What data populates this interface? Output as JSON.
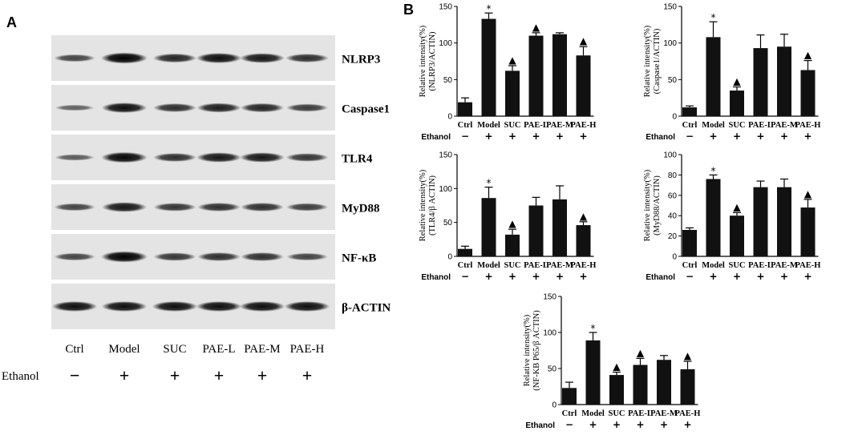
{
  "panel_a": {
    "letter": "A",
    "lanes": [
      "Ctrl",
      "Model",
      "SUC",
      "PAE-L",
      "PAE-M",
      "PAE-H"
    ],
    "treatment_label": "Ethanol",
    "treatment": [
      "−",
      "+",
      "+",
      "+",
      "+",
      "+"
    ],
    "blots": [
      {
        "label": "NLRP3",
        "intensity": [
          0.55,
          1.0,
          0.75,
          0.9,
          0.85,
          0.7
        ]
      },
      {
        "label": "Caspase1",
        "intensity": [
          0.35,
          0.9,
          0.7,
          0.8,
          0.75,
          0.6
        ]
      },
      {
        "label": "TLR4",
        "intensity": [
          0.4,
          0.95,
          0.7,
          0.85,
          0.85,
          0.65
        ]
      },
      {
        "label": "MyD88",
        "intensity": [
          0.55,
          0.85,
          0.65,
          0.7,
          0.7,
          0.6
        ]
      },
      {
        "label": "NF-κB",
        "intensity": [
          0.55,
          1.0,
          0.65,
          0.7,
          0.7,
          0.55
        ]
      },
      {
        "label": "β-ACTIN",
        "intensity": [
          0.9,
          0.9,
          0.9,
          0.9,
          0.9,
          0.9
        ]
      }
    ]
  },
  "panel_b": {
    "letter": "B"
  },
  "chart_data": [
    {
      "type": "bar",
      "categories": [
        "Ctrl",
        "Model",
        "SUC",
        "PAE-L",
        "PAE-M",
        "PAE-H"
      ],
      "values": [
        19,
        133,
        62,
        110,
        112,
        83
      ],
      "errors": [
        6,
        8,
        7,
        4,
        2,
        12
      ],
      "markers": [
        "",
        "*",
        "▲",
        "▲",
        "",
        "▲"
      ],
      "ylabel": [
        "Relative intensity(%)",
        "(NLRP3/ACTIN)"
      ],
      "ylim": [
        0,
        150
      ],
      "yticks": [
        0,
        50,
        100,
        150
      ],
      "treatment_label": "Ethanol",
      "treatment": [
        "−",
        "+",
        "+",
        "+",
        "+",
        "+"
      ]
    },
    {
      "type": "bar",
      "categories": [
        "Ctrl",
        "Model",
        "SUC",
        "PAE-L",
        "PAE-M",
        "PAE-H"
      ],
      "values": [
        12,
        108,
        35,
        93,
        95,
        63
      ],
      "errors": [
        2,
        21,
        5,
        18,
        17,
        13
      ],
      "markers": [
        "",
        "*",
        "▲",
        "",
        "",
        "▲"
      ],
      "ylabel": [
        "Relative intensity(%)",
        "(Caspase1/ACTIN)"
      ],
      "ylim": [
        0,
        150
      ],
      "yticks": [
        0,
        50,
        100,
        150
      ],
      "treatment_label": "Ethanol",
      "treatment": [
        "−",
        "+",
        "+",
        "+",
        "+",
        "+"
      ]
    },
    {
      "type": "bar",
      "categories": [
        "Ctrl",
        "Model",
        "SUC",
        "PAE-L",
        "PAE-M",
        "PAE-H"
      ],
      "values": [
        11,
        86,
        32,
        75,
        84,
        46
      ],
      "errors": [
        4,
        16,
        8,
        12,
        20,
        5
      ],
      "markers": [
        "",
        "*",
        "▲",
        "",
        "",
        "▲"
      ],
      "ylabel": [
        "Relative intensity(%)",
        "(TLR4/β ACTIN)"
      ],
      "ylim": [
        0,
        150
      ],
      "yticks": [
        0,
        50,
        100,
        150
      ],
      "treatment_label": "Ethanol",
      "treatment": [
        "−",
        "+",
        "+",
        "+",
        "+",
        "+"
      ]
    },
    {
      "type": "bar",
      "categories": [
        "Ctrl",
        "Model",
        "SUC",
        "PAE-L",
        "PAE-M",
        "PAE-H"
      ],
      "values": [
        26,
        76,
        40,
        68,
        68,
        48
      ],
      "errors": [
        2,
        4,
        3,
        6,
        8,
        8
      ],
      "markers": [
        "",
        "*",
        "▲",
        "",
        "",
        "▲"
      ],
      "ylabel": [
        "Relative intensity(%)",
        "(MyD88/ACTIN)"
      ],
      "ylim": [
        0,
        100
      ],
      "yticks": [
        0,
        20,
        40,
        60,
        80,
        100
      ],
      "treatment_label": "Ethanol",
      "treatment": [
        "−",
        "+",
        "+",
        "+",
        "+",
        "+"
      ]
    },
    {
      "type": "bar",
      "categories": [
        "Ctrl",
        "Model",
        "SUC",
        "PAE-L",
        "PAE-M",
        "PAE-H"
      ],
      "values": [
        23,
        89,
        41,
        55,
        62,
        49
      ],
      "errors": [
        8,
        11,
        4,
        9,
        6,
        11
      ],
      "markers": [
        "",
        "*",
        "▲",
        "▲",
        "",
        "▲"
      ],
      "ylabel": [
        "Relative intensity(%)",
        "(NF-KB P65/β ACTIN)"
      ],
      "ylim": [
        0,
        150
      ],
      "yticks": [
        0,
        50,
        100,
        150
      ],
      "treatment_label": "Ethanol",
      "treatment": [
        "−",
        "+",
        "+",
        "+",
        "+",
        "+"
      ]
    }
  ]
}
